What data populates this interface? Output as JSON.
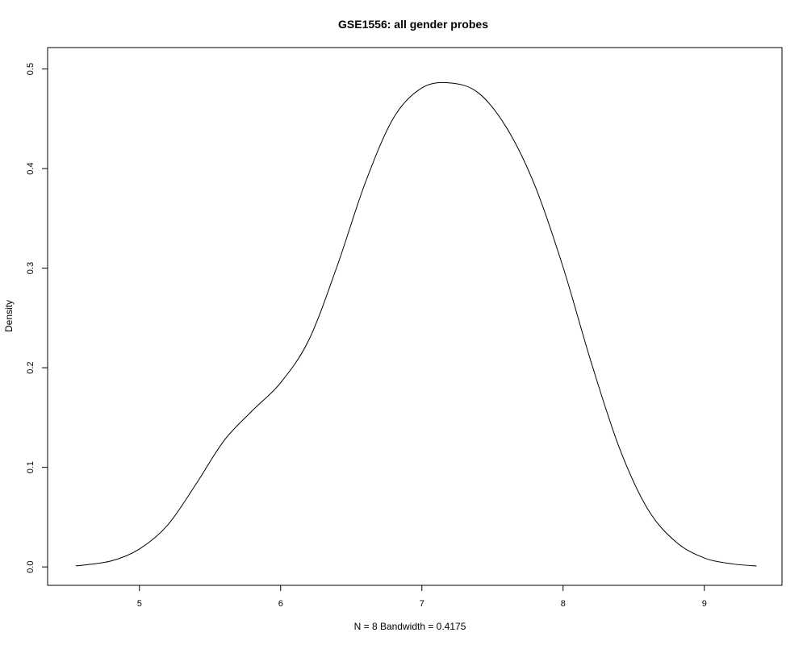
{
  "chart_data": {
    "type": "line",
    "title": "GSE1556: all gender probes",
    "xlabel": "N = 8   Bandwidth = 0.4175",
    "ylabel": "Density",
    "xlim": [
      4.35,
      9.55
    ],
    "ylim": [
      -0.0185,
      0.5215
    ],
    "x_ticks": [
      5,
      6,
      7,
      8,
      9
    ],
    "x_tick_labels": [
      "5",
      "6",
      "7",
      "8",
      "9"
    ],
    "y_ticks": [
      0.0,
      0.1,
      0.2,
      0.3,
      0.4,
      0.5
    ],
    "y_tick_labels": [
      "0.0",
      "0.1",
      "0.2",
      "0.3",
      "0.4",
      "0.5"
    ],
    "grid": false,
    "series": [
      {
        "x": [
          4.55,
          4.8,
          5.0,
          5.2,
          5.4,
          5.6,
          5.8,
          6.0,
          6.2,
          6.4,
          6.6,
          6.8,
          7.0,
          7.2,
          7.4,
          7.6,
          7.8,
          8.0,
          8.2,
          8.4,
          8.6,
          8.8,
          9.0,
          9.2,
          9.37
        ],
        "y": [
          0.001,
          0.006,
          0.018,
          0.042,
          0.083,
          0.127,
          0.157,
          0.185,
          0.228,
          0.302,
          0.386,
          0.451,
          0.481,
          0.486,
          0.476,
          0.441,
          0.383,
          0.301,
          0.205,
          0.119,
          0.058,
          0.025,
          0.009,
          0.003,
          0.001
        ]
      }
    ]
  }
}
